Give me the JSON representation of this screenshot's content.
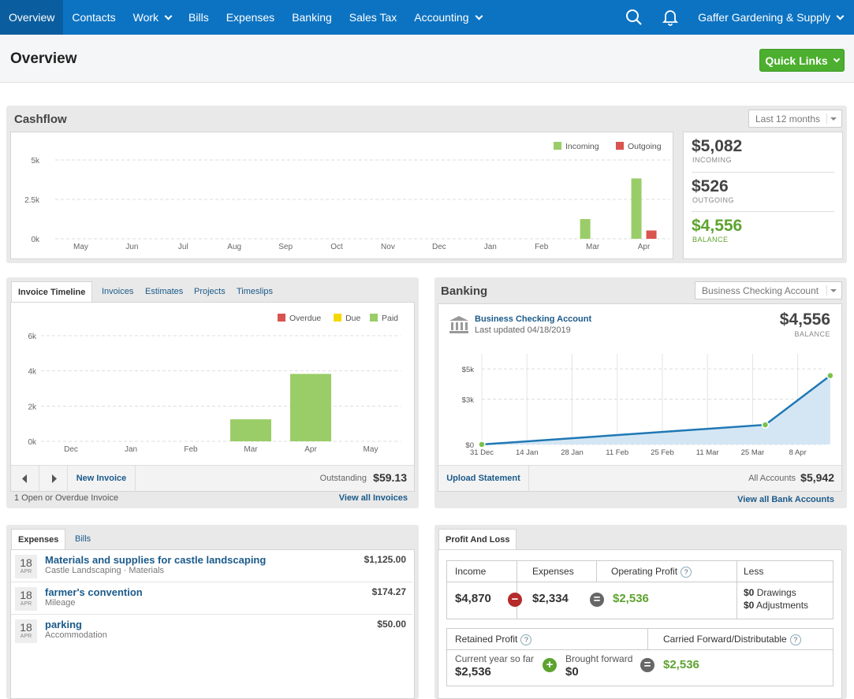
{
  "nav": {
    "items": [
      {
        "label": "Overview"
      },
      {
        "label": "Contacts"
      },
      {
        "label": "Work"
      },
      {
        "label": "Bills"
      },
      {
        "label": "Expenses"
      },
      {
        "label": "Banking"
      },
      {
        "label": "Sales Tax"
      },
      {
        "label": "Accounting"
      }
    ],
    "company": "Gaffer Gardening & Supply"
  },
  "header": {
    "title": "Overview",
    "quick_links": "Quick Links"
  },
  "cashflow": {
    "title": "Cashflow",
    "range": "Last 12 months",
    "incoming": "$5,082",
    "incoming_label": "INCOMING",
    "outgoing": "$526",
    "outgoing_label": "OUTGOING",
    "balance": "$4,556",
    "balance_label": "BALANCE"
  },
  "invoices": {
    "tabs": [
      "Invoice Timeline",
      "Invoices",
      "Estimates",
      "Projects",
      "Timeslips"
    ],
    "new_invoice": "New Invoice",
    "outstanding_label": "Outstanding",
    "outstanding": "$59.13",
    "open_text": "1 Open or Overdue Invoice",
    "view_all": "View all Invoices"
  },
  "banking": {
    "title": "Banking",
    "account_select": "Business Checking Account",
    "account_name": "Business Checking Account",
    "last_updated": "Last updated 04/18/2019",
    "balance": "$4,556",
    "balance_label": "BALANCE",
    "upload": "Upload Statement",
    "all_accounts_label": "All Accounts",
    "all_accounts": "$5,942",
    "view_all": "View all Bank Accounts"
  },
  "expenses": {
    "tabs": [
      "Expenses",
      "Bills"
    ],
    "items": [
      {
        "day": "18",
        "month": "APR",
        "title": "Materials and supplies for castle landscaping",
        "sub": "Castle Landscaping · Materials",
        "amount": "$1,125.00"
      },
      {
        "day": "18",
        "month": "APR",
        "title": "farmer's convention",
        "sub": "Mileage",
        "amount": "$174.27"
      },
      {
        "day": "18",
        "month": "APR",
        "title": "parking",
        "sub": "Accommodation",
        "amount": "$50.00"
      }
    ]
  },
  "pl": {
    "tab": "Profit And Loss",
    "income_label": "Income",
    "expenses_label": "Expenses",
    "op_label": "Operating Profit",
    "less_label": "Less",
    "income": "$4,870",
    "expenses": "$2,334",
    "op": "$2,536",
    "drawings": "Drawings",
    "drawings_amt": "$0",
    "adjustments": "Adjustments",
    "adjustments_amt": "$0",
    "retained_label": "Retained Profit",
    "carried_label": "Carried Forward/Distributable",
    "cy_label": "Current year so far",
    "cy": "$2,536",
    "bf_label": "Brought forward",
    "bf": "$0",
    "carried": "$2,536",
    "q": "?"
  },
  "chart_data": [
    {
      "type": "bar",
      "title": "Cashflow",
      "categories": [
        "May",
        "Jun",
        "Jul",
        "Aug",
        "Sep",
        "Oct",
        "Nov",
        "Dec",
        "Jan",
        "Feb",
        "Mar",
        "Apr"
      ],
      "series": [
        {
          "name": "Incoming",
          "color": "#9acd68",
          "values": [
            0,
            0,
            0,
            0,
            0,
            0,
            0,
            0,
            0,
            0,
            1250,
            3830
          ]
        },
        {
          "name": "Outgoing",
          "color": "#d9534f",
          "values": [
            0,
            0,
            0,
            0,
            0,
            0,
            0,
            0,
            0,
            0,
            0,
            526
          ]
        }
      ],
      "yticks": [
        "0k",
        "2.5k",
        "5k"
      ],
      "ylim": [
        0,
        5000
      ]
    },
    {
      "type": "bar",
      "title": "Invoice Timeline",
      "categories": [
        "Dec",
        "Jan",
        "Feb",
        "Mar",
        "Apr",
        "May"
      ],
      "legend": [
        {
          "name": "Overdue",
          "color": "#d9534f"
        },
        {
          "name": "Due",
          "color": "#f5d800"
        },
        {
          "name": "Paid",
          "color": "#9acd68"
        }
      ],
      "series": [
        {
          "name": "Paid",
          "values": [
            0,
            0,
            0,
            1250,
            3830,
            0
          ]
        }
      ],
      "yticks": [
        "0k",
        "2k",
        "4k",
        "6k"
      ],
      "ylim": [
        0,
        6000
      ]
    },
    {
      "type": "area",
      "title": "Business Checking Account",
      "xticks": [
        "31 Dec",
        "14 Jan",
        "28 Jan",
        "11 Feb",
        "25 Feb",
        "11 Mar",
        "25 Mar",
        "8 Apr"
      ],
      "yticks": [
        "$0",
        "$3k",
        "$5k"
      ],
      "ylim": [
        0,
        6000
      ],
      "points": [
        {
          "x": "31 Dec",
          "y": 0
        },
        {
          "x": "29 Mar",
          "y": 1300
        },
        {
          "x": "18 Apr",
          "y": 4556
        }
      ]
    }
  ]
}
